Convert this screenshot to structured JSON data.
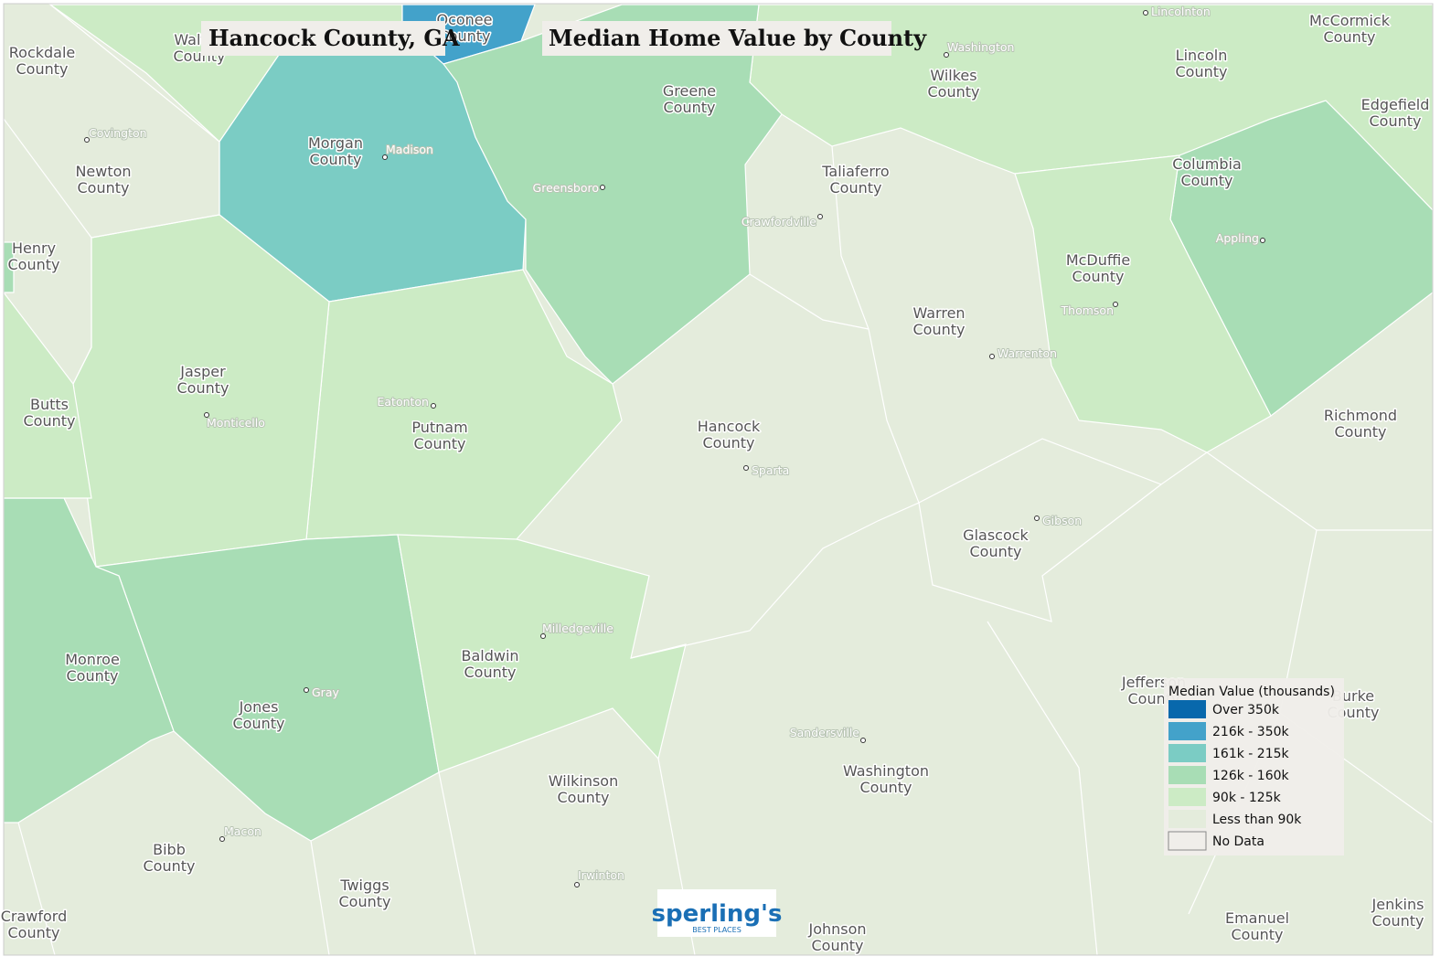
{
  "title": "Hancock County, GA",
  "subtitle": "Median Home Value by County",
  "legend": {
    "title": "Median Value (thousands)",
    "items": [
      {
        "label": "Over 350k",
        "color": "#0868ac"
      },
      {
        "label": "216k - 350k",
        "color": "#43a2ca"
      },
      {
        "label": "161k - 215k",
        "color": "#7bccc4"
      },
      {
        "label": "126k - 160k",
        "color": "#a8ddb5"
      },
      {
        "label": "90k - 125k",
        "color": "#ccebc5"
      },
      {
        "label": "Less than 90k",
        "color": "#e4ecdc"
      },
      {
        "label": "No Data",
        "color": "#f0eeea"
      }
    ]
  },
  "counties": [
    "Rockdale County",
    "Walton County",
    "Oconee County",
    "Greene County",
    "Wilkes County",
    "Lincoln County",
    "McCormick County",
    "Edgefield County",
    "Newton County",
    "Morgan County",
    "Henry County",
    "Taliaferro County",
    "Columbia County",
    "McDuffie County",
    "Warren County",
    "Jasper County",
    "Butts County",
    "Putnam County",
    "Hancock County",
    "Richmond County",
    "Glascock County",
    "Monroe County",
    "Baldwin County",
    "Jones County",
    "Jefferson County",
    "Burke County",
    "Washington County",
    "Wilkinson County",
    "Bibb County",
    "Twiggs County",
    "Crawford County",
    "Emanuel County",
    "Jenkins County",
    "Johnson County"
  ],
  "cities": [
    "Covington",
    "Madison",
    "Greensboro",
    "Crawfordville",
    "Washington",
    "Lincolnton",
    "Appling",
    "Thomson",
    "Warrenton",
    "Eatonton",
    "Monticello",
    "Sparta",
    "Gibson",
    "Milledgeville",
    "Gray",
    "Sandersville",
    "Macon",
    "Irwinton"
  ],
  "logo": {
    "name": "sperling's",
    "tagline": "BEST PLACES"
  }
}
